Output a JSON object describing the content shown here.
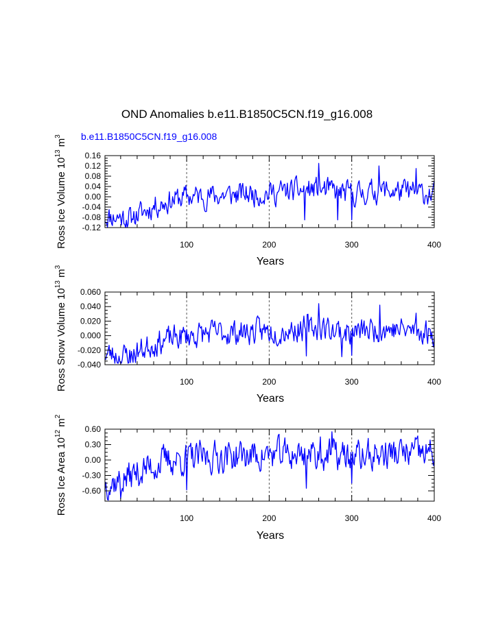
{
  "title": "OND Anomalies b.e11.B1850C5CN.f19_g16.008",
  "legend_label": "b.e11.B1850C5CN.f19_g16.008",
  "colors": {
    "series": "#0000ff",
    "axis": "#000000",
    "refline": "#555555"
  },
  "chart_data": [
    {
      "type": "line",
      "name": "ross-ice-volume",
      "ylabel": {
        "base": "Ross Ice Volume 10",
        "exp": "13",
        "unit": " m",
        "unit_exp": "3"
      },
      "xlabel": "Years",
      "xlim": [
        1,
        400
      ],
      "ylim": [
        -0.12,
        0.16
      ],
      "yticks": [
        "0.16",
        "0.12",
        "0.08",
        "0.04",
        "0.00",
        "-0.04",
        "-0.08",
        "-0.12"
      ],
      "ytick_values": [
        0.16,
        0.12,
        0.08,
        0.04,
        0.0,
        -0.04,
        -0.08,
        -0.12
      ],
      "xticks": [
        100,
        200,
        300,
        400
      ],
      "ref_lines_x": [
        100,
        200,
        300
      ],
      "trend": [
        [
          1,
          -0.075
        ],
        [
          25,
          -0.08
        ],
        [
          45,
          -0.065
        ],
        [
          60,
          -0.035
        ],
        [
          80,
          -0.015
        ],
        [
          100,
          0.0
        ],
        [
          140,
          0.005
        ],
        [
          200,
          0.015
        ],
        [
          260,
          0.03
        ],
        [
          300,
          0.01
        ],
        [
          340,
          0.025
        ],
        [
          400,
          0.01
        ]
      ],
      "noise": 0.045,
      "spikes": [
        [
          260,
          0.13
        ],
        [
          333,
          0.12
        ],
        [
          378,
          0.11
        ],
        [
          283,
          -0.09
        ],
        [
          300,
          -0.09
        ],
        [
          243,
          -0.09
        ],
        [
          33,
          -0.1
        ]
      ],
      "seed": 11,
      "ymin_clip": -0.12,
      "ymax_clip": 0.135
    },
    {
      "type": "line",
      "name": "ross-snow-volume",
      "ylabel": {
        "base": "Ross Snow Volume 10",
        "exp": "13",
        "unit": " m",
        "unit_exp": "3"
      },
      "xlabel": "Years",
      "xlim": [
        1,
        400
      ],
      "ylim": [
        -0.04,
        0.06
      ],
      "yticks": [
        "0.060",
        "0.040",
        "0.020",
        "0.000",
        "-0.020",
        "-0.040"
      ],
      "ytick_values": [
        0.06,
        0.04,
        0.02,
        0.0,
        -0.02,
        -0.04
      ],
      "xticks": [
        100,
        200,
        300,
        400
      ],
      "ref_lines_x": [
        100,
        200,
        300
      ],
      "trend": [
        [
          1,
          -0.025
        ],
        [
          25,
          -0.028
        ],
        [
          45,
          -0.02
        ],
        [
          60,
          -0.01
        ],
        [
          80,
          -0.005
        ],
        [
          100,
          0.0
        ],
        [
          140,
          0.004
        ],
        [
          200,
          0.006
        ],
        [
          260,
          0.012
        ],
        [
          300,
          0.004
        ],
        [
          340,
          0.01
        ],
        [
          400,
          0.004
        ]
      ],
      "noise": 0.017,
      "spikes": [
        [
          260,
          0.044
        ],
        [
          334,
          0.042
        ],
        [
          378,
          0.031
        ],
        [
          245,
          -0.028
        ],
        [
          288,
          -0.029
        ],
        [
          300,
          -0.027
        ],
        [
          32,
          -0.037
        ]
      ],
      "seed": 23,
      "ymin_clip": -0.038,
      "ymax_clip": 0.045
    },
    {
      "type": "line",
      "name": "ross-ice-area",
      "ylabel": {
        "base": "Ross Ice Area 10",
        "exp": "12",
        "unit": " m",
        "unit_exp": "2"
      },
      "xlabel": "Years",
      "xlim": [
        1,
        400
      ],
      "ylim": [
        -0.8,
        0.6
      ],
      "yticks": [
        "0.60",
        "0.30",
        "0.00",
        "-0.30",
        "-0.60"
      ],
      "ytick_values": [
        0.6,
        0.3,
        0.0,
        -0.3,
        -0.6
      ],
      "xticks": [
        100,
        200,
        300,
        400
      ],
      "ref_lines_x": [
        100,
        200,
        300
      ],
      "trend": [
        [
          1,
          -0.45
        ],
        [
          20,
          -0.4
        ],
        [
          40,
          -0.25
        ],
        [
          60,
          -0.1
        ],
        [
          80,
          0.0
        ],
        [
          100,
          0.02
        ],
        [
          150,
          0.08
        ],
        [
          200,
          0.1
        ],
        [
          260,
          0.12
        ],
        [
          300,
          0.05
        ],
        [
          340,
          0.12
        ],
        [
          400,
          0.12
        ]
      ],
      "noise": 0.3,
      "spikes": [
        [
          276,
          0.55
        ],
        [
          262,
          0.45
        ],
        [
          100,
          -0.58
        ],
        [
          20,
          -0.75
        ],
        [
          245,
          -0.55
        ],
        [
          6,
          -0.62
        ],
        [
          300,
          -0.45
        ]
      ],
      "seed": 37,
      "ymin_clip": -0.78,
      "ymax_clip": 0.56
    }
  ]
}
